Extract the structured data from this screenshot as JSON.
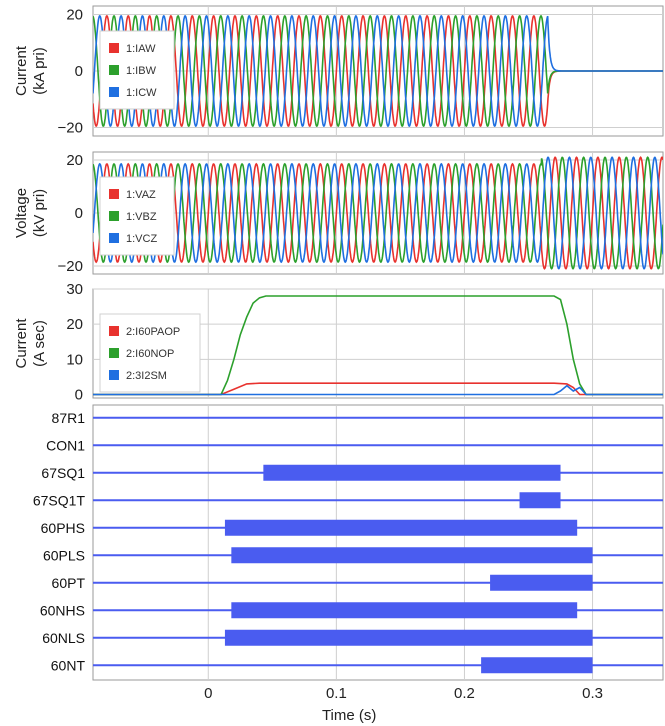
{
  "chart_data": [
    {
      "type": "line",
      "id": "current_pri",
      "ylabel": "Current\n(kA pri)",
      "ylim": [
        -23,
        23
      ],
      "yticks": [
        -20,
        0,
        20
      ],
      "xlim": [
        -0.09,
        0.355
      ],
      "series": [
        {
          "name": "1:IAW",
          "color": "#e8322e",
          "amplitude": 19.5,
          "frequency_hz": 60,
          "phase_deg": 0,
          "end_time": 0.265
        },
        {
          "name": "1:IBW",
          "color": "#2ca02c",
          "amplitude": 19.5,
          "frequency_hz": 60,
          "phase_deg": -120,
          "end_time": 0.265
        },
        {
          "name": "1:ICW",
          "color": "#1f6fe0",
          "amplitude": 19.5,
          "frequency_hz": 60,
          "phase_deg": 120,
          "end_time": 0.265
        }
      ],
      "grid": true,
      "legend": "top-left"
    },
    {
      "type": "line",
      "id": "voltage_pri",
      "ylabel": "Voltage\n(kV pri)",
      "ylim": [
        -23,
        23
      ],
      "yticks": [
        -20,
        0,
        20
      ],
      "xlim": [
        -0.09,
        0.355
      ],
      "series": [
        {
          "name": "1:VAZ",
          "color": "#e8322e",
          "amplitude": 18.5,
          "amplitude_after": 21.0,
          "frequency_hz": 60,
          "phase_deg": 0,
          "change_time": 0.26
        },
        {
          "name": "1:VBZ",
          "color": "#2ca02c",
          "amplitude": 18.5,
          "amplitude_after": 21.0,
          "frequency_hz": 60,
          "phase_deg": -120,
          "change_time": 0.26
        },
        {
          "name": "1:VCZ",
          "color": "#1f6fe0",
          "amplitude": 18.5,
          "amplitude_after": 21.0,
          "frequency_hz": 60,
          "phase_deg": 120,
          "change_time": 0.26
        }
      ],
      "grid": true,
      "legend": "top-left"
    },
    {
      "type": "line",
      "id": "current_sec",
      "ylabel": "Current\n(A sec)",
      "ylim": [
        -1,
        30
      ],
      "yticks": [
        0,
        10,
        20,
        30
      ],
      "xlim": [
        -0.09,
        0.355
      ],
      "series": [
        {
          "name": "2:I60PAOP",
          "color": "#e8322e",
          "x": [
            -0.09,
            0.01,
            0.02,
            0.03,
            0.04,
            0.27,
            0.28,
            0.285,
            0.29,
            0.355
          ],
          "y": [
            0,
            0,
            1.5,
            3,
            3.2,
            3.2,
            3,
            2,
            0,
            0
          ]
        },
        {
          "name": "2:I60NOP",
          "color": "#2ca02c",
          "x": [
            -0.09,
            0.01,
            0.015,
            0.02,
            0.025,
            0.03,
            0.035,
            0.04,
            0.045,
            0.27,
            0.275,
            0.28,
            0.285,
            0.29,
            0.295,
            0.355
          ],
          "y": [
            0,
            0,
            4,
            10,
            17,
            22,
            26,
            27.5,
            28,
            28,
            27,
            20,
            10,
            3,
            0,
            0
          ]
        },
        {
          "name": "2:3I2SM",
          "color": "#1f6fe0",
          "x": [
            -0.09,
            0.27,
            0.275,
            0.28,
            0.285,
            0.29,
            0.295,
            0.355
          ],
          "y": [
            0,
            0,
            1,
            2.5,
            1,
            2,
            0,
            0
          ]
        }
      ],
      "grid": true,
      "legend": "top-left"
    },
    {
      "type": "digital",
      "id": "elements",
      "xlim": [
        -0.09,
        0.355
      ],
      "xlabel": "Time (s)",
      "xticks": [
        0,
        0.1,
        0.2,
        0.3
      ],
      "xtick_labels": [
        "0",
        "0.1",
        "0.2",
        "0.3"
      ],
      "color": "#4a5cf0",
      "channels": [
        {
          "name": "87R1",
          "on": []
        },
        {
          "name": "CON1",
          "on": []
        },
        {
          "name": "67SQ1",
          "on": [
            [
              0.043,
              0.275
            ]
          ]
        },
        {
          "name": "67SQ1T",
          "on": [
            [
              0.243,
              0.275
            ]
          ]
        },
        {
          "name": "60PHS",
          "on": [
            [
              0.013,
              0.288
            ]
          ]
        },
        {
          "name": "60PLS",
          "on": [
            [
              0.018,
              0.3
            ]
          ]
        },
        {
          "name": "60PT",
          "on": [
            [
              0.22,
              0.3
            ]
          ]
        },
        {
          "name": "60NHS",
          "on": [
            [
              0.018,
              0.288
            ]
          ]
        },
        {
          "name": "60NLS",
          "on": [
            [
              0.013,
              0.3
            ]
          ]
        },
        {
          "name": "60NT",
          "on": [
            [
              0.213,
              0.3
            ]
          ]
        }
      ]
    }
  ]
}
